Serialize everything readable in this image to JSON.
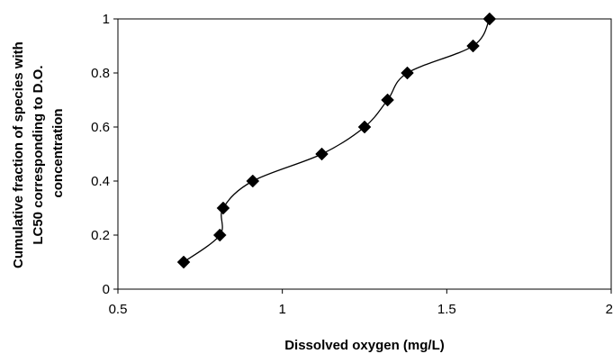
{
  "chart_data": {
    "type": "scatter",
    "title": "",
    "xlabel": "Dissolved oxygen (mg/L)",
    "ylabel_lines": [
      "Cumulative fraction of species with",
      "LC50 corresponding to D.O.",
      "concentration"
    ],
    "xlim": [
      0.5,
      2
    ],
    "ylim": [
      0,
      1
    ],
    "x_ticks": [
      0.5,
      1,
      1.5,
      2
    ],
    "x_tick_labels": [
      "0.5",
      "1",
      "1.5",
      "2"
    ],
    "y_ticks": [
      0,
      0.2,
      0.4,
      0.6,
      0.8,
      1
    ],
    "y_tick_labels": [
      "0",
      "0.2",
      "0.4",
      "0.6",
      "0.8",
      "1"
    ],
    "grid": false,
    "legend": "none",
    "marker": "diamond",
    "smoothed_line": true,
    "colors": {
      "marker": "#000000",
      "line": "#000000"
    },
    "series": [
      {
        "x": [
          0.7,
          0.81,
          0.82,
          0.91,
          1.12,
          1.25,
          1.32,
          1.38,
          1.58,
          1.63
        ],
        "y": [
          0.1,
          0.2,
          0.3,
          0.4,
          0.5,
          0.6,
          0.7,
          0.8,
          0.9,
          1.0
        ]
      }
    ]
  }
}
